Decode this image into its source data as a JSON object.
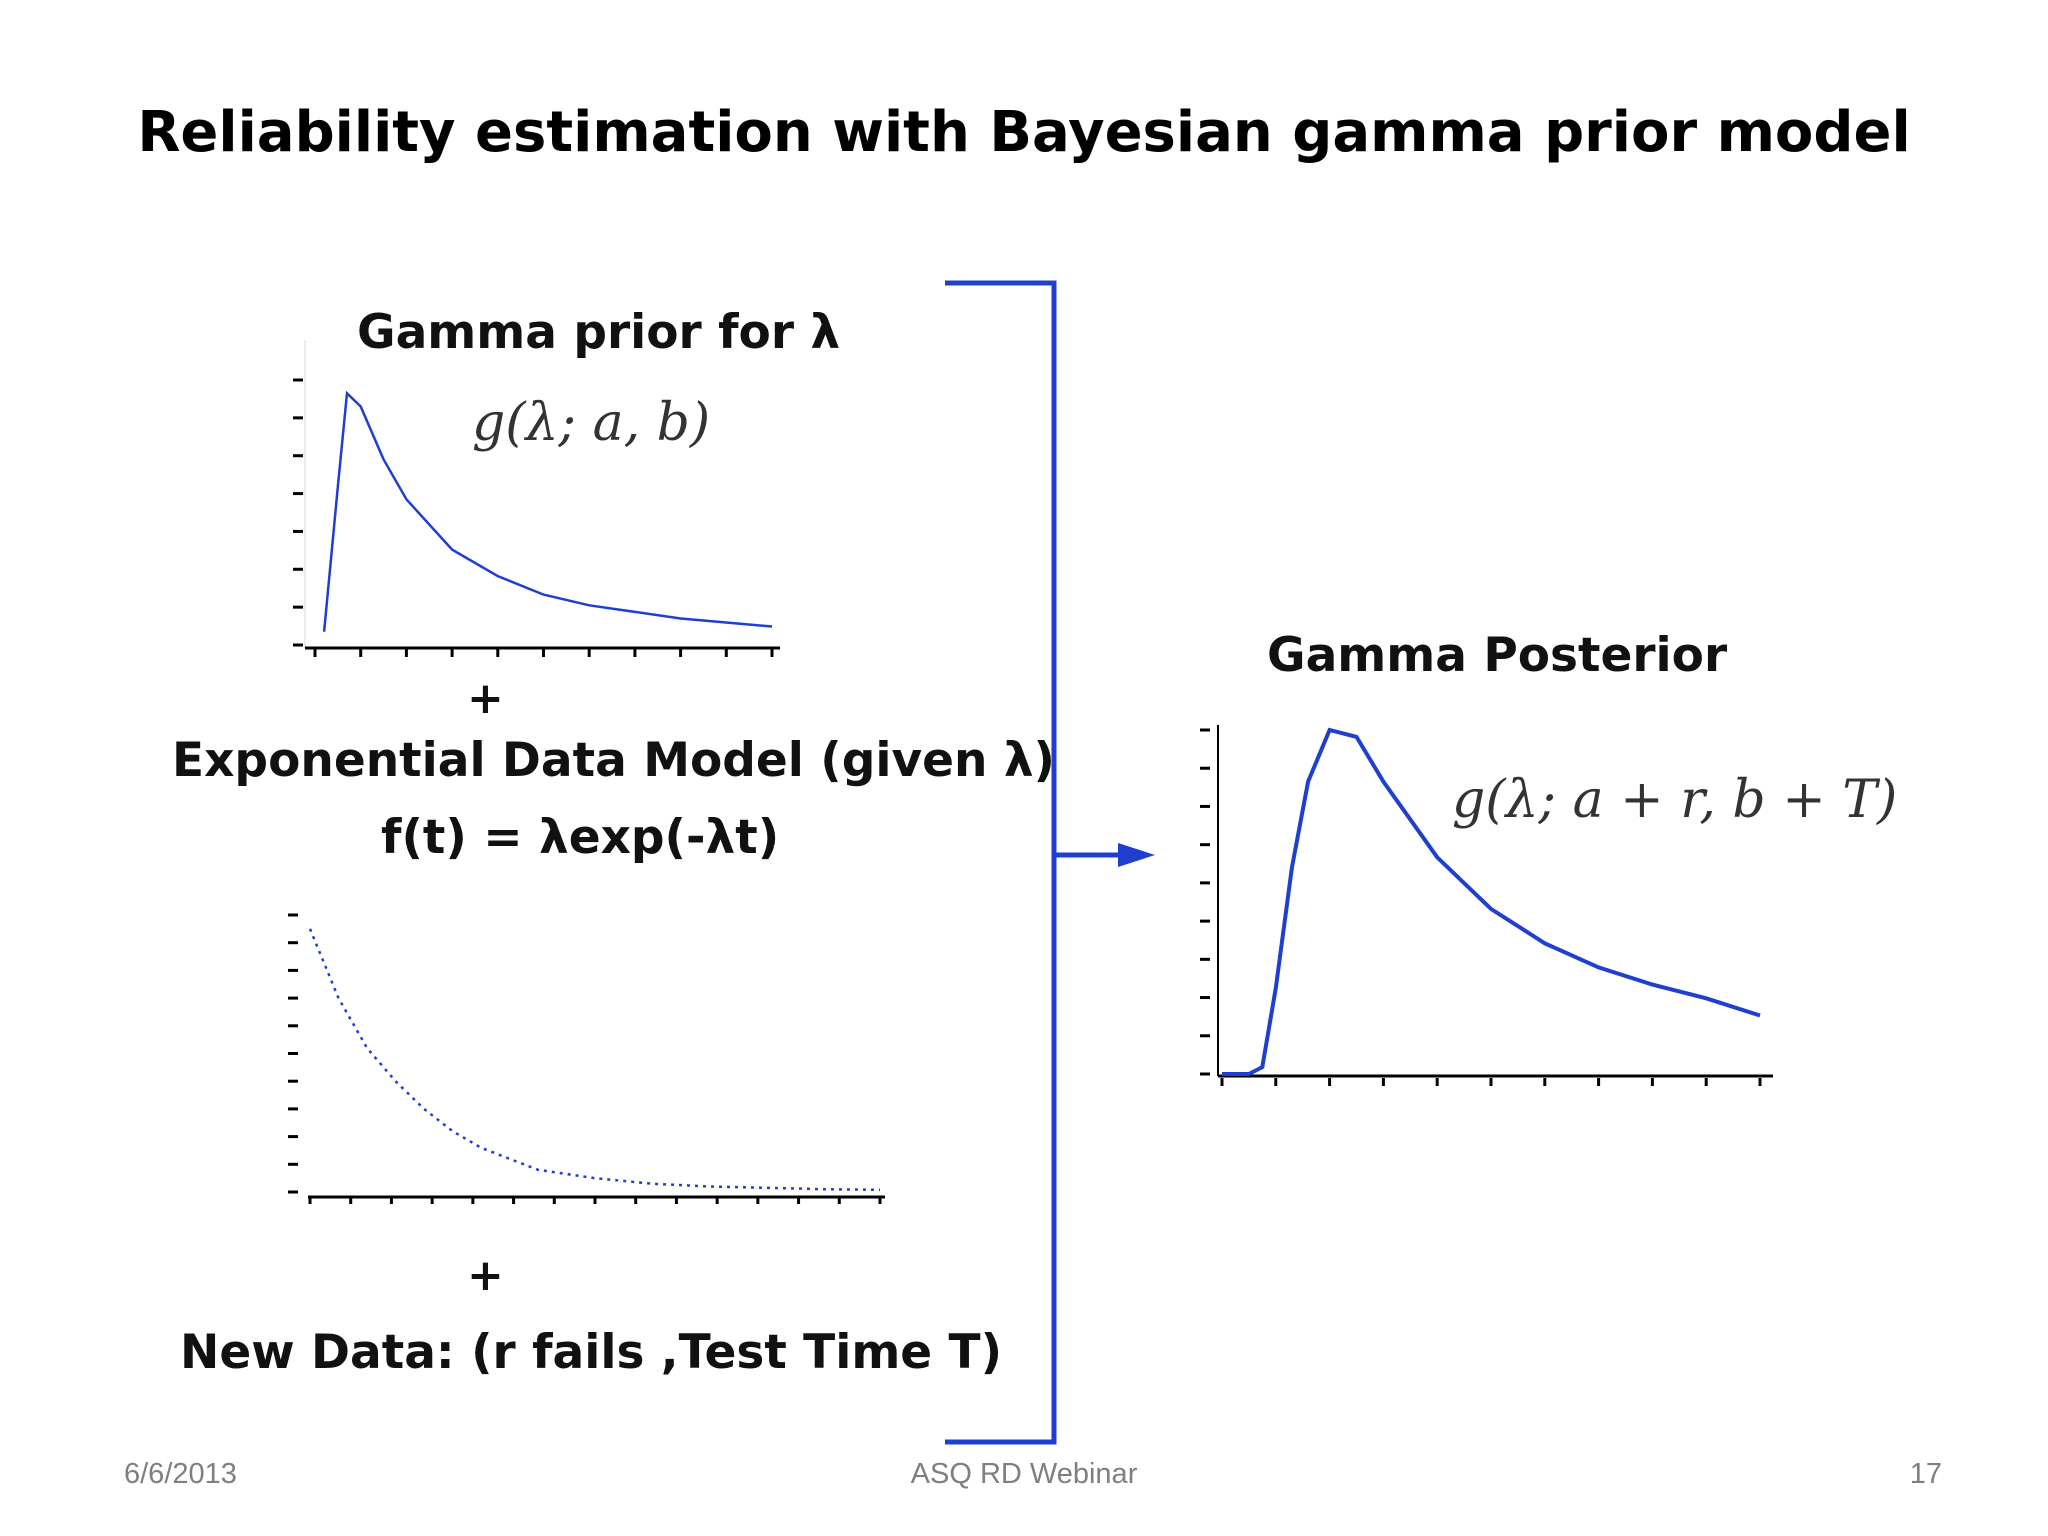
{
  "slide": {
    "title": "Reliability estimation with Bayesian gamma prior model",
    "prior_label": "Gamma prior for λ",
    "prior_formula": "g(λ; a, b)",
    "plus": "+",
    "exp_label": "Exponential Data Model (given λ)",
    "exp_formula": "f(t) = λexp(-λt)",
    "new_data_label": "New Data:  (r fails ,Test Time T)",
    "posterior_label": "Gamma Posterior",
    "posterior_formula": "g(λ; a + r, b + T)"
  },
  "footer": {
    "date": "6/6/2013",
    "center": "ASQ RD Webinar",
    "page": "17"
  },
  "colors": {
    "curve": "#1f3fd0",
    "bracket": "#1f3fd0",
    "axis": "#000000"
  },
  "chart_data": [
    {
      "type": "line",
      "name": "gamma-prior",
      "x": [
        0.02,
        0.05,
        0.07,
        0.1,
        0.15,
        0.2,
        0.3,
        0.4,
        0.5,
        0.6,
        0.8,
        1.0
      ],
      "y": [
        0.05,
        0.6,
        0.95,
        0.9,
        0.7,
        0.55,
        0.36,
        0.26,
        0.19,
        0.15,
        0.1,
        0.07
      ],
      "xlim": [
        0,
        1.0
      ],
      "ylim": [
        0,
        1.0
      ]
    },
    {
      "type": "line",
      "name": "exponential-data-model",
      "x": [
        0,
        0.05,
        0.1,
        0.15,
        0.2,
        0.25,
        0.3,
        0.35,
        0.4,
        0.5,
        0.6,
        0.7,
        0.8,
        0.9,
        1.0
      ],
      "y": [
        0.95,
        0.7,
        0.52,
        0.4,
        0.3,
        0.22,
        0.16,
        0.12,
        0.08,
        0.05,
        0.03,
        0.02,
        0.015,
        0.01,
        0.008
      ],
      "xlim": [
        0,
        1.0
      ],
      "ylim": [
        0,
        1.0
      ]
    },
    {
      "type": "line",
      "name": "gamma-posterior",
      "x": [
        0,
        0.05,
        0.075,
        0.1,
        0.13,
        0.16,
        0.2,
        0.25,
        0.3,
        0.4,
        0.5,
        0.6,
        0.7,
        0.8,
        0.9,
        1.0
      ],
      "y": [
        0,
        0.0,
        0.02,
        0.25,
        0.6,
        0.85,
        1.0,
        0.98,
        0.85,
        0.63,
        0.48,
        0.38,
        0.31,
        0.26,
        0.22,
        0.17
      ],
      "xlim": [
        0,
        1.0
      ],
      "ylim": [
        0,
        1.0
      ]
    }
  ]
}
